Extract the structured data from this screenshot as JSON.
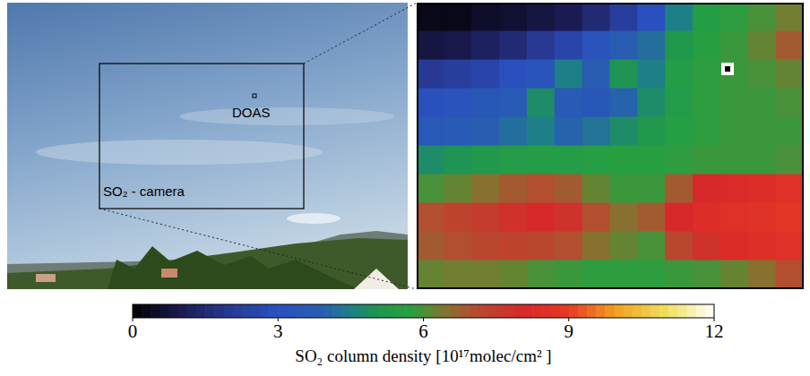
{
  "photo": {
    "labels": {
      "doas": "DOAS",
      "camera": "SO₂ - camera"
    }
  },
  "chart_data": {
    "type": "heatmap",
    "tick_labels": false,
    "cells": [
      [
        0.3,
        0.3,
        0.5,
        0.6,
        0.8,
        1.0,
        1.5,
        2.2,
        3.0,
        4.5,
        5.5,
        5.8,
        6.0,
        6.3
      ],
      [
        0.8,
        0.9,
        1.2,
        1.5,
        2.0,
        2.5,
        3.2,
        3.8,
        4.2,
        5.2,
        5.7,
        5.9,
        6.2,
        6.8
      ],
      [
        2.0,
        2.2,
        2.5,
        3.0,
        3.3,
        4.5,
        3.8,
        5.0,
        4.5,
        5.5,
        5.8,
        5.9,
        6.0,
        6.2
      ],
      [
        3.0,
        3.2,
        3.4,
        3.6,
        4.8,
        3.6,
        3.4,
        4.0,
        4.8,
        5.4,
        5.8,
        5.9,
        5.9,
        6.0
      ],
      [
        3.5,
        3.6,
        3.8,
        4.2,
        4.5,
        4.0,
        4.3,
        4.8,
        5.2,
        5.6,
        5.8,
        5.9,
        5.9,
        5.9
      ],
      [
        4.8,
        5.0,
        5.2,
        5.4,
        5.5,
        5.5,
        5.6,
        5.7,
        5.7,
        5.8,
        5.9,
        5.9,
        5.9,
        6.0
      ],
      [
        6.0,
        6.2,
        6.5,
        6.8,
        7.0,
        6.8,
        6.2,
        5.9,
        5.9,
        6.8,
        8.0,
        8.2,
        8.3,
        8.5
      ],
      [
        7.0,
        7.3,
        7.5,
        7.8,
        8.0,
        7.8,
        7.0,
        6.5,
        6.8,
        8.0,
        8.3,
        8.5,
        8.6,
        8.8
      ],
      [
        6.8,
        7.0,
        7.2,
        7.3,
        7.2,
        7.0,
        6.5,
        6.2,
        6.0,
        7.2,
        7.8,
        8.2,
        8.4,
        8.5
      ],
      [
        6.2,
        6.3,
        6.3,
        6.2,
        6.0,
        5.9,
        5.8,
        5.8,
        5.8,
        5.9,
        6.0,
        6.2,
        6.5,
        7.0
      ]
    ],
    "colorbar": {
      "label": "SO₂ column density [10¹⁷molec/cm² ]",
      "lim": [
        0,
        12
      ],
      "ticks": [
        0,
        3,
        6,
        9,
        12
      ]
    }
  }
}
